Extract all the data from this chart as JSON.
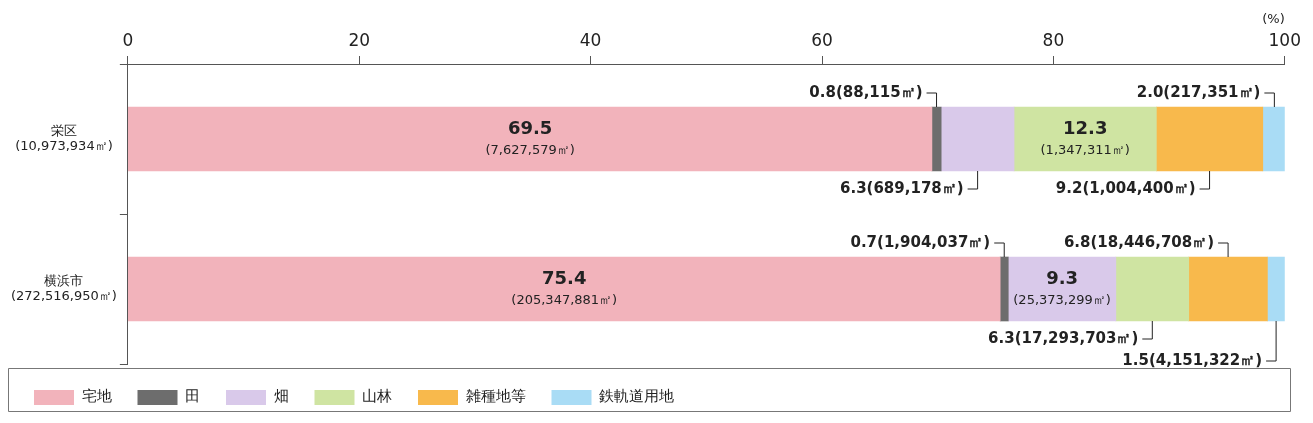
{
  "chart_data": {
    "type": "bar",
    "orientation": "horizontal",
    "stacked": true,
    "xlabel": "(%)",
    "xlim": [
      0,
      100
    ],
    "xticks": [
      0,
      20,
      40,
      60,
      80,
      100
    ],
    "legend": "bottom",
    "categories": [
      "栄区\n(10,973,934㎡)",
      "横浜市\n(272,516,950㎡)"
    ],
    "series": [
      {
        "name": "宅地",
        "color": "#f2b3bb",
        "values": [
          69.5,
          75.4
        ],
        "value_labels": [
          "69.5(7,627,579㎡)",
          "75.4(205,347,881㎡)"
        ]
      },
      {
        "name": "田",
        "color": "#6d6d6d",
        "values": [
          0.8,
          0.7
        ],
        "value_labels": [
          "0.8(88,115㎡)",
          "0.7(1,904,037㎡)"
        ]
      },
      {
        "name": "畑",
        "color": "#d9c9ea",
        "values": [
          6.3,
          9.3
        ],
        "value_labels": [
          "6.3(689,178㎡)",
          "9.3(25,373,299㎡)"
        ]
      },
      {
        "name": "山林",
        "color": "#cfe4a2",
        "values": [
          12.3,
          6.3
        ],
        "value_labels": [
          "12.3(1,347,311㎡)",
          "6.3(17,293,703㎡)"
        ]
      },
      {
        "name": "雑種地等",
        "color": "#f8b94c",
        "values": [
          9.2,
          6.8
        ],
        "value_labels": [
          "9.2(1,004,400㎡)",
          "6.8(18,446,708㎡)"
        ]
      },
      {
        "name": "鉄軌道用地",
        "color": "#a9dcf5",
        "values": [
          2.0,
          1.5
        ],
        "value_labels": [
          "2.0(217,351㎡)",
          "1.5(4,151,322㎡)"
        ]
      }
    ]
  }
}
